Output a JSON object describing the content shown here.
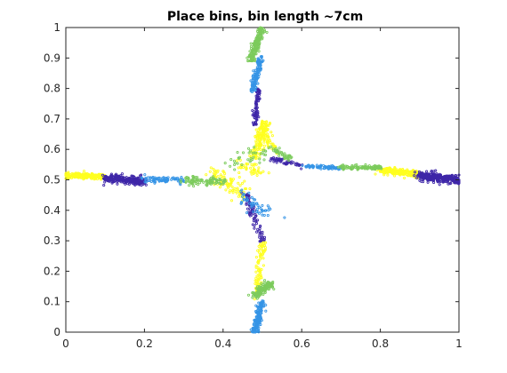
{
  "chart_data": {
    "type": "scatter",
    "title": "Place bins, bin length ~7cm",
    "xlabel": "",
    "ylabel": "",
    "xlim": [
      0,
      1
    ],
    "ylim": [
      0,
      1
    ],
    "xticks": [
      0,
      0.2,
      0.4,
      0.6,
      0.8,
      1
    ],
    "yticks": [
      0,
      0.1,
      0.2,
      0.3,
      0.4,
      0.5,
      0.6,
      0.7,
      0.8,
      0.9,
      1
    ],
    "xtick_labels": [
      "0",
      "0.2",
      "0.4",
      "0.6",
      "0.8",
      "1"
    ],
    "ytick_labels": [
      "0",
      "0.1",
      "0.2",
      "0.3",
      "0.4",
      "0.5",
      "0.6",
      "0.7",
      "0.8",
      "0.9",
      "1"
    ],
    "grid": false,
    "legend": "none",
    "marker": "dot",
    "series": [
      {
        "color": "#ffff1f",
        "segments": [
          {
            "x": [
              0.0,
              0.1
            ],
            "y": [
              0.515,
              0.51
            ],
            "spread": 0.007
          },
          {
            "x": [
              0.37,
              0.45
            ],
            "y": [
              0.53,
              0.45
            ],
            "spread": 0.02
          },
          {
            "x": [
              0.44,
              0.5
            ],
            "y": [
              0.56,
              0.52
            ],
            "spread": 0.015
          },
          {
            "x": [
              0.48,
              0.505
            ],
            "y": [
              0.57,
              0.69
            ],
            "spread": 0.012
          },
          {
            "x": [
              0.5,
              0.53
            ],
            "y": [
              0.68,
              0.6
            ],
            "spread": 0.01
          },
          {
            "x": [
              0.485,
              0.5
            ],
            "y": [
              0.11,
              0.3
            ],
            "spread": 0.008
          },
          {
            "x": [
              0.8,
              0.9
            ],
            "y": [
              0.53,
              0.52
            ],
            "spread": 0.01
          }
        ],
        "counts": [
          260,
          90,
          40,
          130,
          50,
          90,
          200
        ]
      },
      {
        "color": "#3e26a8",
        "segments": [
          {
            "x": [
              0.1,
              0.2
            ],
            "y": [
              0.505,
              0.495
            ],
            "spread": 0.01
          },
          {
            "x": [
              0.48,
              0.49
            ],
            "y": [
              0.68,
              0.8
            ],
            "spread": 0.005
          },
          {
            "x": [
              0.46,
              0.5
            ],
            "y": [
              0.45,
              0.3
            ],
            "spread": 0.008
          },
          {
            "x": [
              0.52,
              0.6
            ],
            "y": [
              0.57,
              0.545
            ],
            "spread": 0.006
          },
          {
            "x": [
              0.9,
              1.0
            ],
            "y": [
              0.515,
              0.5
            ],
            "spread": 0.012
          }
        ],
        "counts": [
          260,
          90,
          80,
          50,
          320
        ]
      },
      {
        "color": "#3594e6",
        "segments": [
          {
            "x": [
              0.2,
              0.3
            ],
            "y": [
              0.5,
              0.5
            ],
            "spread": 0.01
          },
          {
            "x": [
              0.475,
              0.495
            ],
            "y": [
              0.79,
              0.9
            ],
            "spread": 0.007
          },
          {
            "x": [
              0.44,
              0.52
            ],
            "y": [
              0.45,
              0.38
            ],
            "spread": 0.02
          },
          {
            "x": [
              0.6,
              0.7
            ],
            "y": [
              0.545,
              0.54
            ],
            "spread": 0.005
          },
          {
            "x": [
              0.48,
              0.5
            ],
            "y": [
              0.0,
              0.1
            ],
            "spread": 0.007
          }
        ],
        "counts": [
          80,
          110,
          50,
          70,
          170
        ]
      },
      {
        "color": "#7ccb5c",
        "segments": [
          {
            "x": [
              0.3,
              0.4
            ],
            "y": [
              0.5,
              0.495
            ],
            "spread": 0.012
          },
          {
            "x": [
              0.42,
              0.52
            ],
            "y": [
              0.55,
              0.6
            ],
            "spread": 0.02
          },
          {
            "x": [
              0.47,
              0.5
            ],
            "y": [
              0.89,
              1.0
            ],
            "spread": 0.008
          },
          {
            "x": [
              0.53,
              0.57
            ],
            "y": [
              0.6,
              0.57
            ],
            "spread": 0.007
          },
          {
            "x": [
              0.7,
              0.8
            ],
            "y": [
              0.54,
              0.54
            ],
            "spread": 0.006
          },
          {
            "x": [
              0.48,
              0.52
            ],
            "y": [
              0.12,
              0.16
            ],
            "spread": 0.01
          }
        ],
        "counts": [
          90,
          40,
          180,
          40,
          110,
          130
        ]
      }
    ]
  }
}
